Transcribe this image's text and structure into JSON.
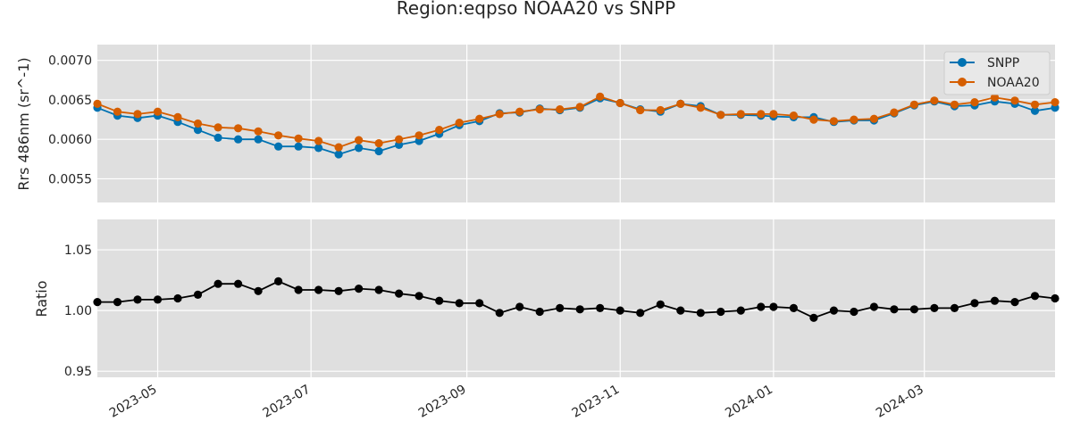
{
  "chart_data": {
    "type": "line",
    "title": "Region:eqpso NOAA20 vs SNPP",
    "x_dates": [
      "2023-04-07",
      "2023-04-15",
      "2023-04-23",
      "2023-05-01",
      "2023-05-09",
      "2023-05-17",
      "2023-05-25",
      "2023-06-02",
      "2023-06-10",
      "2023-06-18",
      "2023-06-26",
      "2023-07-04",
      "2023-07-12",
      "2023-07-20",
      "2023-07-28",
      "2023-08-05",
      "2023-08-13",
      "2023-08-21",
      "2023-08-29",
      "2023-09-06",
      "2023-09-14",
      "2023-09-22",
      "2023-09-30",
      "2023-10-08",
      "2023-10-16",
      "2023-10-24",
      "2023-11-01",
      "2023-11-09",
      "2023-11-17",
      "2023-11-25",
      "2023-12-03",
      "2023-12-11",
      "2023-12-19",
      "2023-12-27",
      "2024-01-01",
      "2024-01-09",
      "2024-01-17",
      "2024-01-25",
      "2024-02-02",
      "2024-02-10",
      "2024-02-18",
      "2024-02-26",
      "2024-03-05",
      "2024-03-13",
      "2024-03-21",
      "2024-03-29",
      "2024-04-06",
      "2024-04-14",
      "2024-04-22"
    ],
    "xlim": [
      "2023-04-07",
      "2024-04-22"
    ],
    "x_ticks": [
      "2023-05",
      "2023-07",
      "2023-09",
      "2023-11",
      "2024-01",
      "2024-03"
    ],
    "grid": true,
    "panels": [
      {
        "ylabel": "Rrs 486nm (sr^-1)",
        "ylim": [
          0.0052,
          0.0072
        ],
        "y_ticks": [
          0.0055,
          0.006,
          0.0065,
          0.007
        ],
        "y_tick_labels": [
          "0.0055",
          "0.0060",
          "0.0065",
          "0.0070"
        ],
        "legend": {
          "position": "top-right",
          "entries": [
            "SNPP",
            "NOAA20"
          ]
        },
        "series": [
          {
            "name": "SNPP",
            "color": "#0072b2",
            "values": [
              0.0064,
              0.0063,
              0.00627,
              0.0063,
              0.00622,
              0.00612,
              0.00602,
              0.006,
              0.006,
              0.00591,
              0.00591,
              0.00589,
              0.00581,
              0.00589,
              0.00585,
              0.00593,
              0.00598,
              0.00607,
              0.00618,
              0.00623,
              0.00633,
              0.00634,
              0.00639,
              0.00637,
              0.0064,
              0.00652,
              0.00646,
              0.00638,
              0.00635,
              0.00645,
              0.00642,
              0.00631,
              0.00631,
              0.0063,
              0.00629,
              0.00628,
              0.00628,
              0.00622,
              0.00624,
              0.00624,
              0.00633,
              0.00643,
              0.00648,
              0.00642,
              0.00643,
              0.00648,
              0.00645,
              0.00636,
              0.0064
            ]
          },
          {
            "name": "NOAA20",
            "color": "#d55e00",
            "values": [
              0.00645,
              0.00635,
              0.00632,
              0.00635,
              0.00628,
              0.0062,
              0.00615,
              0.00614,
              0.0061,
              0.00605,
              0.00601,
              0.00598,
              0.0059,
              0.00599,
              0.00595,
              0.006,
              0.00605,
              0.00612,
              0.00621,
              0.00626,
              0.00632,
              0.00635,
              0.00638,
              0.00638,
              0.00641,
              0.00654,
              0.00646,
              0.00637,
              0.00637,
              0.00645,
              0.0064,
              0.00631,
              0.00632,
              0.00632,
              0.00632,
              0.0063,
              0.00625,
              0.00623,
              0.00625,
              0.00626,
              0.00634,
              0.00644,
              0.00649,
              0.00644,
              0.00647,
              0.00653,
              0.00649,
              0.00644,
              0.00647
            ]
          }
        ]
      },
      {
        "ylabel": "Ratio",
        "ylim": [
          0.945,
          1.075
        ],
        "y_ticks": [
          0.95,
          1.0,
          1.05
        ],
        "y_tick_labels": [
          "0.95",
          "1.00",
          "1.05"
        ],
        "series": [
          {
            "color": "#000000",
            "values": [
              1.007,
              1.007,
              1.009,
              1.009,
              1.01,
              1.013,
              1.022,
              1.022,
              1.016,
              1.024,
              1.017,
              1.017,
              1.016,
              1.018,
              1.017,
              1.014,
              1.012,
              1.008,
              1.006,
              1.006,
              0.998,
              1.003,
              0.999,
              1.002,
              1.001,
              1.002,
              1.0,
              0.998,
              1.005,
              1.0,
              0.998,
              0.999,
              1.0,
              1.003,
              1.003,
              1.002,
              0.994,
              1.0,
              0.999,
              1.003,
              1.001,
              1.001,
              1.002,
              1.002,
              1.006,
              1.008,
              1.007,
              1.012,
              1.01
            ]
          }
        ]
      }
    ]
  }
}
